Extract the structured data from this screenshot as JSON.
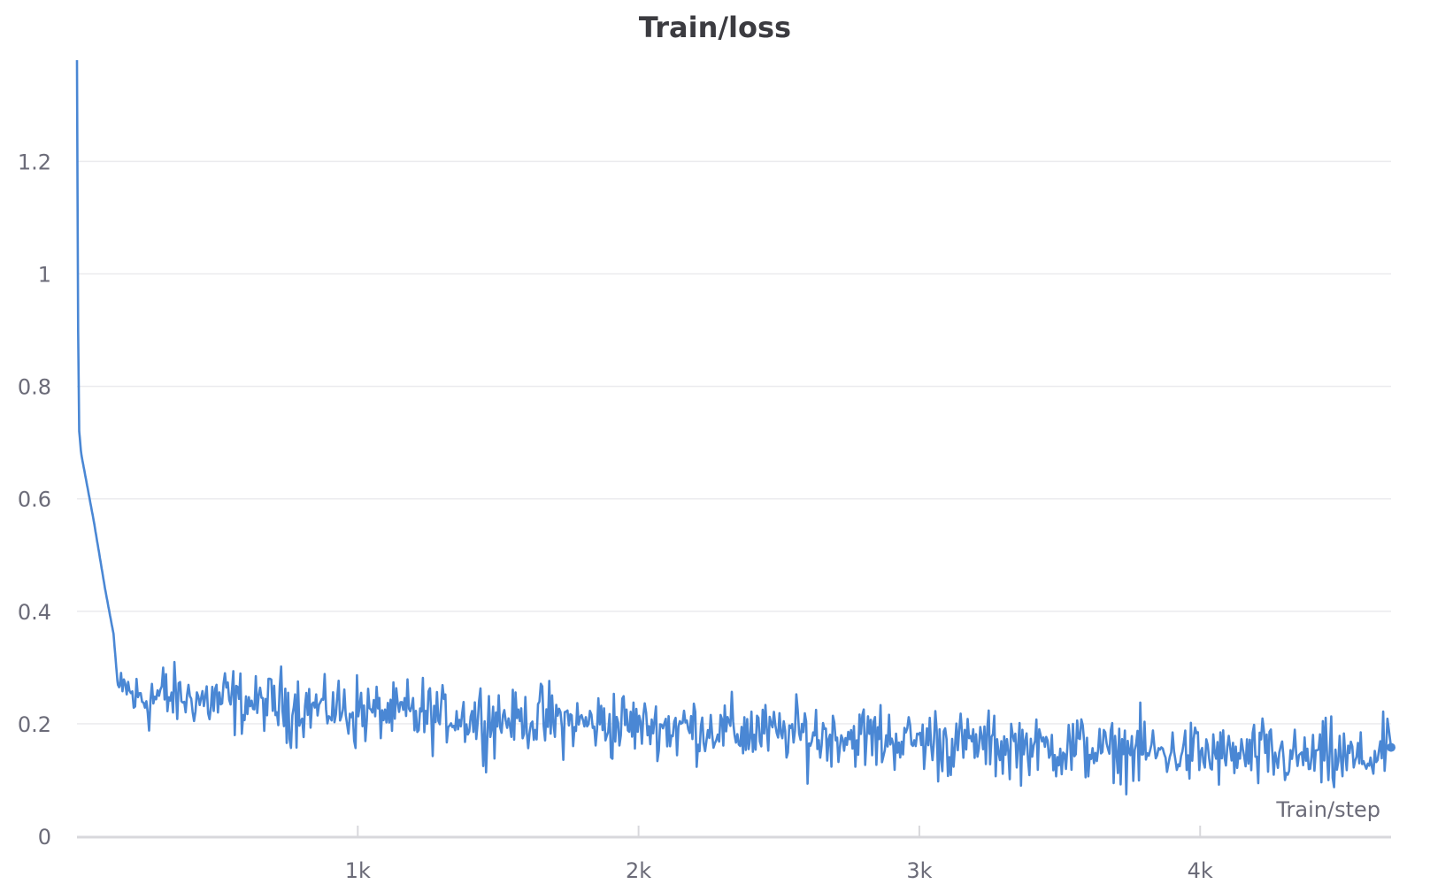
{
  "chart_data": {
    "type": "line",
    "title": "Train/loss",
    "xlabel": "Train/step",
    "ylabel": "",
    "xlim": [
      0,
      4680
    ],
    "ylim": [
      0,
      1.38
    ],
    "yticks": [
      0,
      0.2,
      0.4,
      0.6,
      0.8,
      1,
      1.2
    ],
    "ytick_labels": [
      "0",
      "0.2",
      "0.4",
      "0.6",
      "0.8",
      "1",
      "1.2"
    ],
    "xticks": [
      1000,
      2000,
      3000,
      4000
    ],
    "xtick_labels": [
      "1k",
      "2k",
      "3k",
      "4k"
    ],
    "grid": true,
    "legend": "none",
    "colors": {
      "series": "#4a87d4",
      "grid": "#ebebee",
      "axis": "#d8d8dc",
      "text": "#6b6b78",
      "title": "#3b3b40"
    },
    "series": [
      {
        "values_note": "",
        "x": [
          0,
          2,
          4,
          8,
          15,
          30,
          60,
          100,
          130,
          145,
          155,
          160,
          170,
          200,
          300,
          400,
          500,
          600,
          700,
          800,
          900,
          1000,
          1200,
          1400,
          1600,
          1800,
          2000,
          2200,
          2400,
          2600,
          2800,
          3000,
          3200,
          3400,
          3600,
          3800,
          4000,
          4200,
          4400,
          4600,
          4680
        ],
        "y": [
          1.38,
          1.15,
          0.9,
          0.72,
          0.68,
          0.64,
          0.56,
          0.44,
          0.36,
          0.27,
          0.26,
          0.24,
          0.27,
          0.245,
          0.248,
          0.245,
          0.24,
          0.238,
          0.235,
          0.232,
          0.228,
          0.222,
          0.216,
          0.211,
          0.208,
          0.202,
          0.198,
          0.192,
          0.186,
          0.181,
          0.176,
          0.171,
          0.165,
          0.16,
          0.155,
          0.15,
          0.145,
          0.142,
          0.139,
          0.136,
          0.158
        ]
      }
    ]
  }
}
